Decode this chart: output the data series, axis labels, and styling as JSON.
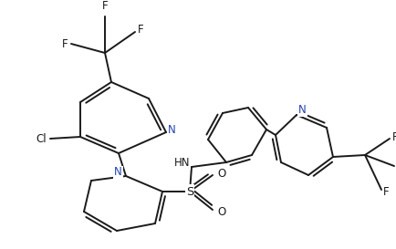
{
  "bg_color": "#ffffff",
  "line_color": "#1a1a1a",
  "N_color": "#2244aa",
  "line_width": 1.4,
  "figsize": [
    4.35,
    2.73
  ],
  "dpi": 100,
  "xlim": [
    0,
    435
  ],
  "ylim": [
    0,
    273
  ]
}
